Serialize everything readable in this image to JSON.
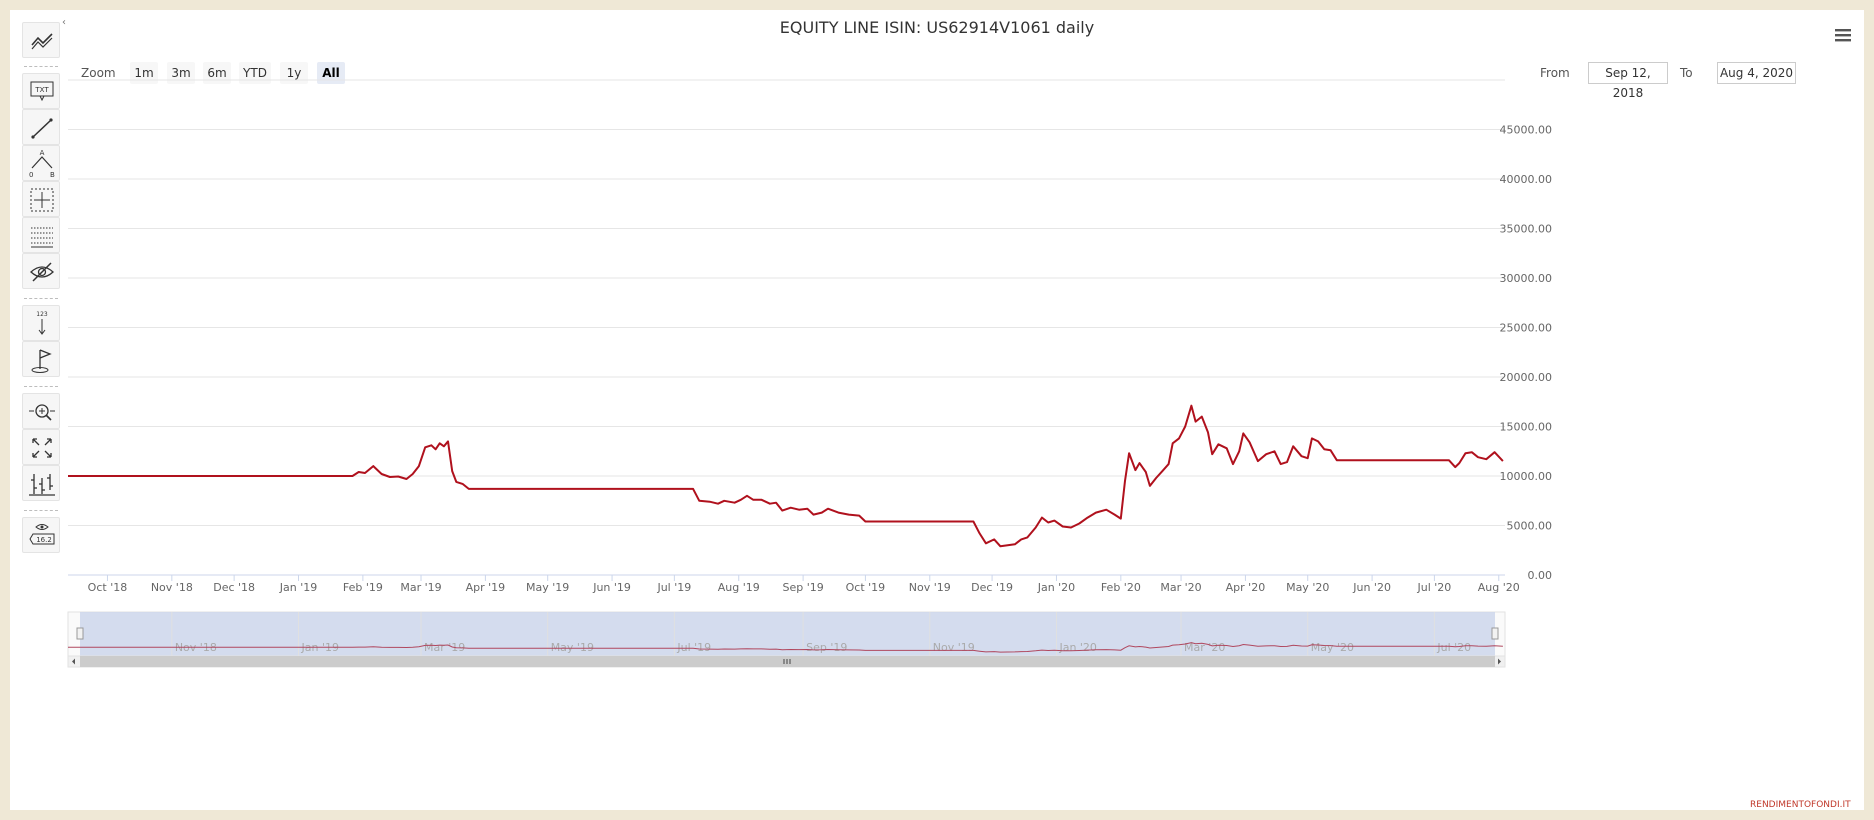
{
  "title": "EQUITY LINE ISIN: US62914V1061 daily",
  "zoom": {
    "label": "Zoom",
    "buttons": [
      "1m",
      "3m",
      "6m",
      "YTD",
      "1y",
      "All"
    ],
    "selected": "All"
  },
  "range": {
    "from_label": "From",
    "from_value": "Sep 12, 2018",
    "to_label": "To",
    "to_value": "Aug 4, 2020"
  },
  "toolbar_icons": {
    "top_text": "TXT",
    "measure_text": "123",
    "label_value": "16.2",
    "fib_a": "A",
    "fib_0": "0",
    "fib_b": "B"
  },
  "credits": "RENDIMENTOFONDI.IT",
  "colors": {
    "series": "#b0111d",
    "navigator_fill": "#ccd6eb"
  },
  "chart_data": {
    "type": "line",
    "title": "EQUITY LINE ISIN: US62914V1061 daily",
    "xlabel": "",
    "ylabel": "",
    "x_range": [
      "2018-09-12",
      "2020-08-04"
    ],
    "ylim": [
      0,
      50000
    ],
    "y_ticks": [
      "0.00",
      "5000.00",
      "10000.00",
      "15000.00",
      "20000.00",
      "25000.00",
      "30000.00",
      "35000.00",
      "40000.00",
      "45000.00"
    ],
    "x_ticks": [
      {
        "label": "Oct '18",
        "date": "2018-10-01"
      },
      {
        "label": "Nov '18",
        "date": "2018-11-01"
      },
      {
        "label": "Dec '18",
        "date": "2018-12-01"
      },
      {
        "label": "Jan '19",
        "date": "2019-01-01"
      },
      {
        "label": "Feb '19",
        "date": "2019-02-01"
      },
      {
        "label": "Mar '19",
        "date": "2019-03-01"
      },
      {
        "label": "Apr '19",
        "date": "2019-04-01"
      },
      {
        "label": "May '19",
        "date": "2019-05-01"
      },
      {
        "label": "Jun '19",
        "date": "2019-06-01"
      },
      {
        "label": "Jul '19",
        "date": "2019-07-01"
      },
      {
        "label": "Aug '19",
        "date": "2019-08-01"
      },
      {
        "label": "Sep '19",
        "date": "2019-09-01"
      },
      {
        "label": "Oct '19",
        "date": "2019-10-01"
      },
      {
        "label": "Nov '19",
        "date": "2019-11-01"
      },
      {
        "label": "Dec '19",
        "date": "2019-12-01"
      },
      {
        "label": "Jan '20",
        "date": "2020-01-01"
      },
      {
        "label": "Feb '20",
        "date": "2020-02-01"
      },
      {
        "label": "Mar '20",
        "date": "2020-03-01"
      },
      {
        "label": "Apr '20",
        "date": "2020-04-01"
      },
      {
        "label": "May '20",
        "date": "2020-05-01"
      },
      {
        "label": "Jun '20",
        "date": "2020-06-01"
      },
      {
        "label": "Jul '20",
        "date": "2020-07-01"
      },
      {
        "label": "Aug '20",
        "date": "2020-08-01"
      }
    ],
    "navigator_ticks": [
      {
        "label": "Nov '18",
        "date": "2018-11-01"
      },
      {
        "label": "Jan '19",
        "date": "2019-01-01"
      },
      {
        "label": "Mar '19",
        "date": "2019-03-01"
      },
      {
        "label": "May '19",
        "date": "2019-05-01"
      },
      {
        "label": "Jul '19",
        "date": "2019-07-01"
      },
      {
        "label": "Sep '19",
        "date": "2019-09-01"
      },
      {
        "label": "Nov '19",
        "date": "2019-11-01"
      },
      {
        "label": "Jan '20",
        "date": "2020-01-01"
      },
      {
        "label": "Mar '20",
        "date": "2020-03-01"
      },
      {
        "label": "May '20",
        "date": "2020-05-01"
      },
      {
        "label": "Jul '20",
        "date": "2020-07-01"
      }
    ],
    "grid": true,
    "legend": "none",
    "series": [
      {
        "points": [
          [
            "2018-09-12",
            10000
          ],
          [
            "2019-01-27",
            10000
          ],
          [
            "2019-01-30",
            10400
          ],
          [
            "2019-02-02",
            10300
          ],
          [
            "2019-02-06",
            11000
          ],
          [
            "2019-02-10",
            10200
          ],
          [
            "2019-02-14",
            9900
          ],
          [
            "2019-02-18",
            9950
          ],
          [
            "2019-02-22",
            9700
          ],
          [
            "2019-02-25",
            10200
          ],
          [
            "2019-02-28",
            11000
          ],
          [
            "2019-03-03",
            12900
          ],
          [
            "2019-03-06",
            13100
          ],
          [
            "2019-03-08",
            12700
          ],
          [
            "2019-03-10",
            13300
          ],
          [
            "2019-03-12",
            13000
          ],
          [
            "2019-03-14",
            13500
          ],
          [
            "2019-03-16",
            10500
          ],
          [
            "2019-03-18",
            9400
          ],
          [
            "2019-03-21",
            9200
          ],
          [
            "2019-03-24",
            8700
          ],
          [
            "2019-03-28",
            8700
          ],
          [
            "2019-07-10",
            8700
          ],
          [
            "2019-07-13",
            7500
          ],
          [
            "2019-07-18",
            7400
          ],
          [
            "2019-07-22",
            7200
          ],
          [
            "2019-07-25",
            7500
          ],
          [
            "2019-07-30",
            7300
          ],
          [
            "2019-08-02",
            7600
          ],
          [
            "2019-08-05",
            8000
          ],
          [
            "2019-08-08",
            7600
          ],
          [
            "2019-08-12",
            7600
          ],
          [
            "2019-08-16",
            7200
          ],
          [
            "2019-08-19",
            7300
          ],
          [
            "2019-08-22",
            6500
          ],
          [
            "2019-08-26",
            6800
          ],
          [
            "2019-08-30",
            6600
          ],
          [
            "2019-09-03",
            6700
          ],
          [
            "2019-09-06",
            6100
          ],
          [
            "2019-09-10",
            6300
          ],
          [
            "2019-09-13",
            6700
          ],
          [
            "2019-09-18",
            6300
          ],
          [
            "2019-09-23",
            6100
          ],
          [
            "2019-09-28",
            6000
          ],
          [
            "2019-10-01",
            5400
          ],
          [
            "2019-11-22",
            5400
          ],
          [
            "2019-11-25",
            4200
          ],
          [
            "2019-11-28",
            3200
          ],
          [
            "2019-12-02",
            3600
          ],
          [
            "2019-12-05",
            2900
          ],
          [
            "2019-12-12",
            3100
          ],
          [
            "2019-12-15",
            3600
          ],
          [
            "2019-12-18",
            3800
          ],
          [
            "2019-12-22",
            4800
          ],
          [
            "2019-12-25",
            5800
          ],
          [
            "2019-12-28",
            5300
          ],
          [
            "2019-12-31",
            5500
          ],
          [
            "2020-01-04",
            4900
          ],
          [
            "2020-01-08",
            4800
          ],
          [
            "2020-01-12",
            5200
          ],
          [
            "2020-01-16",
            5800
          ],
          [
            "2020-01-20",
            6300
          ],
          [
            "2020-01-25",
            6600
          ],
          [
            "2020-01-29",
            6100
          ],
          [
            "2020-02-01",
            5700
          ],
          [
            "2020-02-03",
            9500
          ],
          [
            "2020-02-05",
            12300
          ],
          [
            "2020-02-08",
            10600
          ],
          [
            "2020-02-10",
            11300
          ],
          [
            "2020-02-13",
            10400
          ],
          [
            "2020-02-15",
            9000
          ],
          [
            "2020-02-18",
            9800
          ],
          [
            "2020-02-21",
            10500
          ],
          [
            "2020-02-24",
            11200
          ],
          [
            "2020-02-26",
            13300
          ],
          [
            "2020-02-29",
            13800
          ],
          [
            "2020-03-03",
            15000
          ],
          [
            "2020-03-06",
            17100
          ],
          [
            "2020-03-08",
            15500
          ],
          [
            "2020-03-11",
            16000
          ],
          [
            "2020-03-14",
            14400
          ],
          [
            "2020-03-16",
            12200
          ],
          [
            "2020-03-19",
            13200
          ],
          [
            "2020-03-23",
            12800
          ],
          [
            "2020-03-26",
            11200
          ],
          [
            "2020-03-29",
            12500
          ],
          [
            "2020-03-31",
            14300
          ],
          [
            "2020-04-03",
            13400
          ],
          [
            "2020-04-07",
            11500
          ],
          [
            "2020-04-11",
            12200
          ],
          [
            "2020-04-15",
            12500
          ],
          [
            "2020-04-18",
            11200
          ],
          [
            "2020-04-21",
            11400
          ],
          [
            "2020-04-24",
            13000
          ],
          [
            "2020-04-28",
            12000
          ],
          [
            "2020-05-01",
            11800
          ],
          [
            "2020-05-03",
            13800
          ],
          [
            "2020-05-06",
            13500
          ],
          [
            "2020-05-09",
            12700
          ],
          [
            "2020-05-12",
            12600
          ],
          [
            "2020-05-15",
            11600
          ],
          [
            "2020-07-08",
            11600
          ],
          [
            "2020-07-11",
            10900
          ],
          [
            "2020-07-13",
            11300
          ],
          [
            "2020-07-16",
            12300
          ],
          [
            "2020-07-19",
            12400
          ],
          [
            "2020-07-22",
            11900
          ],
          [
            "2020-07-26",
            11700
          ],
          [
            "2020-07-30",
            12400
          ],
          [
            "2020-08-03",
            11500
          ]
        ]
      }
    ]
  }
}
